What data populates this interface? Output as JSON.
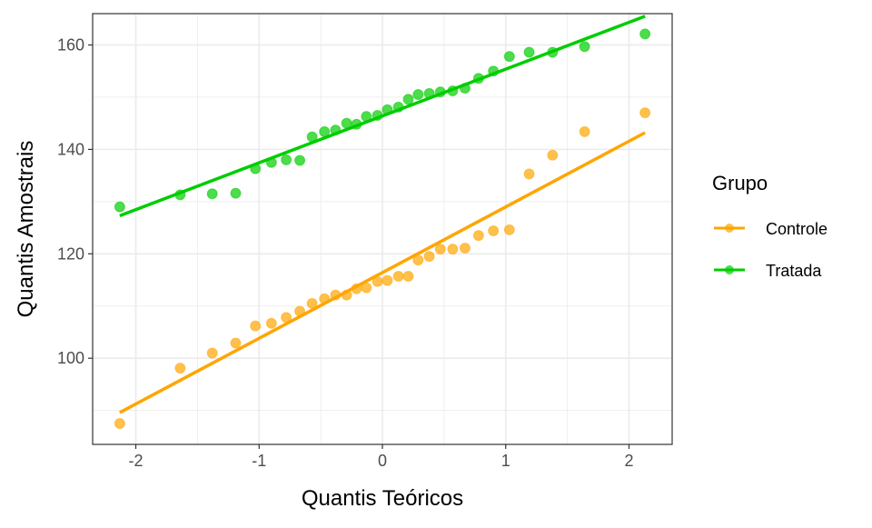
{
  "chart_data": {
    "type": "scatter",
    "title": "",
    "xlabel": "Quantis Teóricos",
    "ylabel": "Quantis Amostrais",
    "xlim": [
      -2.35,
      2.35
    ],
    "ylim": [
      83.5,
      166
    ],
    "xticks": [
      -2,
      -1,
      0,
      1,
      2
    ],
    "xtick_labels": [
      "-2",
      "-1",
      "0",
      "1",
      "2"
    ],
    "yticks": [
      100,
      120,
      140,
      160
    ],
    "ytick_labels": [
      "100",
      "120",
      "140",
      "160"
    ],
    "grid": true,
    "legend": {
      "title": "Grupo",
      "placement": "right"
    },
    "x": [
      -2.13,
      -1.64,
      -1.38,
      -1.19,
      -1.03,
      -0.9,
      -0.78,
      -0.67,
      -0.57,
      -0.47,
      -0.38,
      -0.29,
      -0.21,
      -0.13,
      -0.04,
      0.04,
      0.13,
      0.21,
      0.29,
      0.38,
      0.47,
      0.57,
      0.67,
      0.78,
      0.9,
      1.03,
      1.19,
      1.38,
      1.64,
      2.13
    ],
    "series": [
      {
        "name": "Controle",
        "color": "#FFA500",
        "values": [
          87.5,
          98.1,
          101.0,
          102.9,
          106.2,
          106.7,
          107.8,
          109.0,
          110.5,
          111.4,
          112.1,
          112.1,
          113.3,
          113.5,
          114.7,
          114.9,
          115.7,
          115.7,
          118.8,
          119.5,
          120.9,
          120.9,
          121.1,
          123.5,
          124.4,
          124.6,
          135.3,
          138.9,
          143.4,
          147.0
        ],
        "line": {
          "x": [
            -2.13,
            2.13
          ],
          "y": [
            89.6,
            143.2
          ]
        }
      },
      {
        "name": "Tratada",
        "color": "#00CD00",
        "values": [
          129.0,
          131.3,
          131.5,
          131.6,
          136.3,
          137.5,
          138.0,
          137.9,
          142.4,
          143.4,
          143.7,
          145.0,
          144.8,
          146.3,
          146.5,
          147.6,
          148.1,
          149.6,
          150.5,
          150.7,
          151.0,
          151.2,
          151.7,
          153.6,
          155.0,
          157.8,
          158.6,
          158.6,
          159.7,
          162.1
        ],
        "line": {
          "x": [
            -2.13,
            2.13
          ],
          "y": [
            127.3,
            165.5
          ]
        }
      }
    ]
  }
}
